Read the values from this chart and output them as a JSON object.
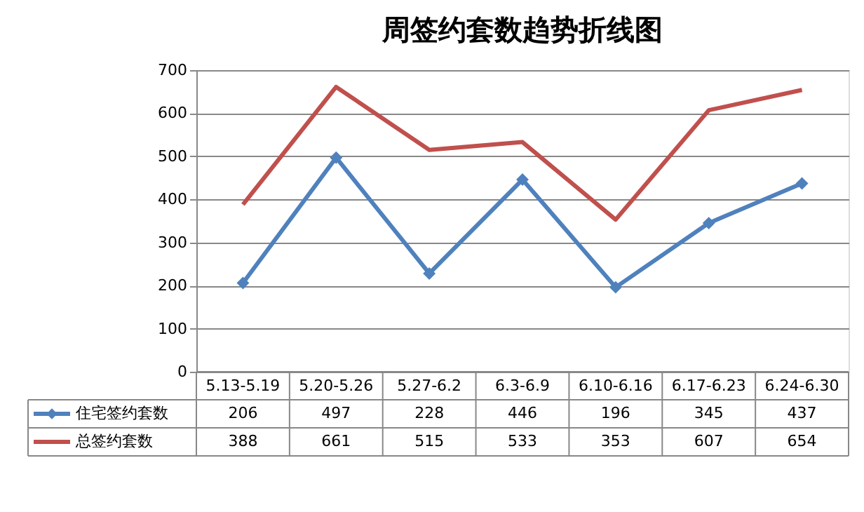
{
  "chart_data": {
    "type": "line",
    "title": "周签约套数趋势折线图",
    "categories": [
      "5.13-5.19",
      "5.20-5.26",
      "5.27-6.2",
      "6.3-6.9",
      "6.10-6.16",
      "6.17-6.23",
      "6.24-6.30"
    ],
    "series": [
      {
        "name": "住宅签约套数",
        "color": "#4f81bd",
        "marker": "diamond",
        "values": [
          206,
          497,
          228,
          446,
          196,
          345,
          437
        ]
      },
      {
        "name": "总签约套数",
        "color": "#c0504d",
        "marker": "none",
        "values": [
          388,
          661,
          515,
          533,
          353,
          607,
          654
        ]
      }
    ],
    "ylim": [
      0,
      700
    ],
    "yticks": [
      0,
      100,
      200,
      300,
      400,
      500,
      600,
      700
    ],
    "grid": "y",
    "legend": "bottom",
    "data_labels": true
  }
}
